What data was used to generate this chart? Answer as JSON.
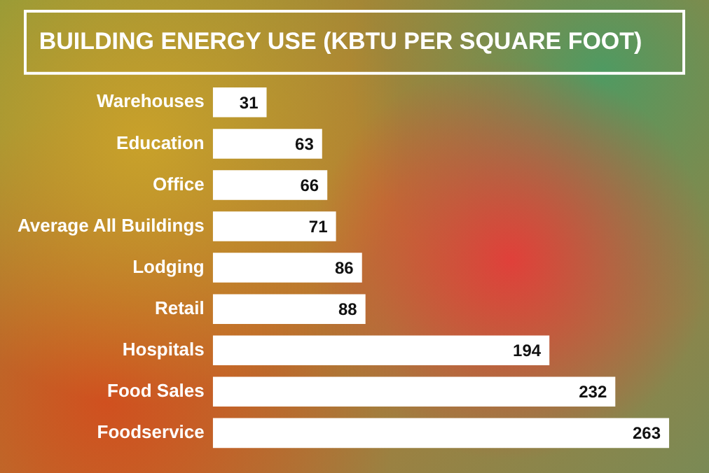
{
  "chart_data": {
    "type": "bar",
    "orientation": "horizontal",
    "title": "BUILDING ENERGY USE (KBTU PER SQUARE FOOT)",
    "categories": [
      "Warehouses",
      "Education",
      "Office",
      "Average All Buildings",
      "Lodging",
      "Retail",
      "Hospitals",
      "Food Sales",
      "Foodservice"
    ],
    "values": [
      31,
      63,
      66,
      71,
      86,
      88,
      194,
      232,
      263
    ],
    "color": "#ffffff",
    "data_labels": true,
    "xlim": [
      0,
      265
    ],
    "tick_labels": "y",
    "legend": false
  }
}
